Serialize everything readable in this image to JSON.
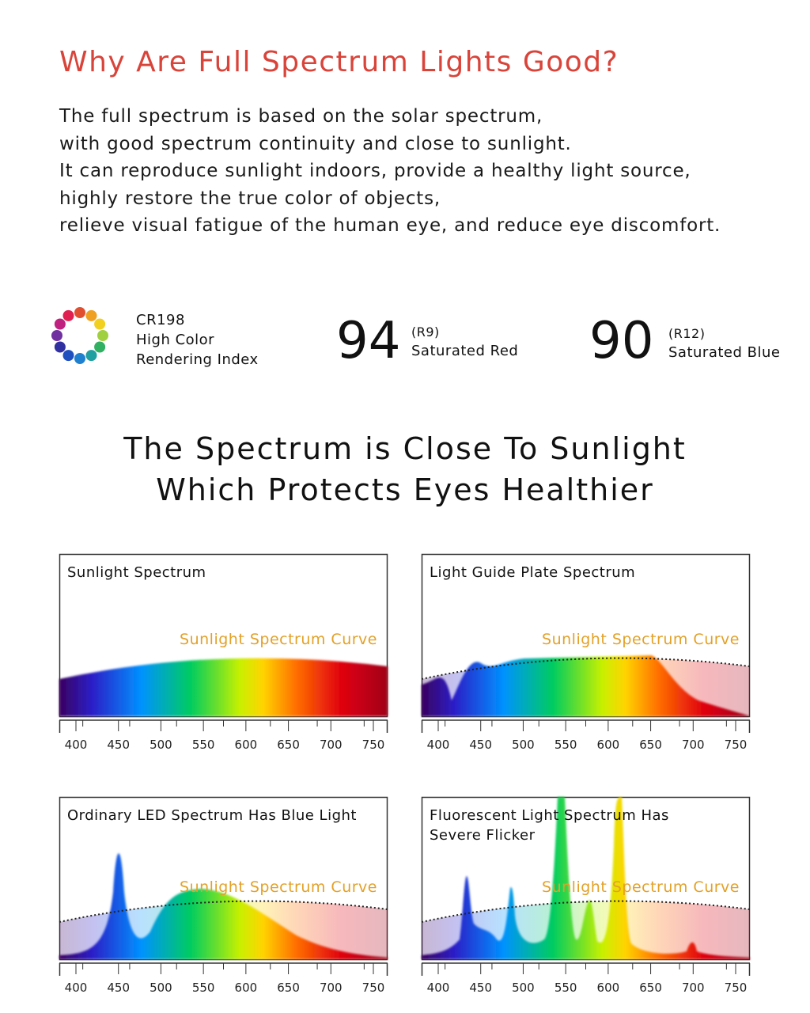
{
  "header": {
    "title": "Why Are Full Spectrum Lights Good?",
    "paragraph": [
      "The full spectrum is based on the solar spectrum,",
      "with good spectrum continuity and close to sunlight.",
      "It can reproduce sunlight indoors, provide a healthy light source,",
      "highly restore the true color of objects,",
      "relieve visual fatigue of the human eye, and reduce eye discomfort."
    ]
  },
  "stats": [
    {
      "label": [
        "CR198",
        "High Color",
        "Rendering Index"
      ]
    },
    {
      "value": 94,
      "code": "(R9)",
      "label": "Saturated Red"
    },
    {
      "value": 90,
      "code": "(R12)",
      "label": "Saturated Blue"
    }
  ],
  "subtitle": [
    "The Spectrum is Close To Sunlight",
    "Which Protects Eyes Healthier"
  ],
  "panels": [
    {
      "title": [
        "Sunlight Spectrum"
      ],
      "curve_label": "Sunlight Spectrum Curve"
    },
    {
      "title": [
        "Light Guide Plate Spectrum"
      ],
      "curve_label": "Sunlight Spectrum Curve"
    },
    {
      "title": [
        "Ordinary LED Spectrum Has Blue Light"
      ],
      "curve_label": "Sunlight Spectrum Curve"
    },
    {
      "title": [
        "Fluorescent Light Spectrum Has",
        "Severe Flicker"
      ],
      "curve_label": "Sunlight Spectrum Curve"
    }
  ],
  "xticks": [
    400,
    450,
    500,
    550,
    600,
    650,
    700,
    750
  ]
}
